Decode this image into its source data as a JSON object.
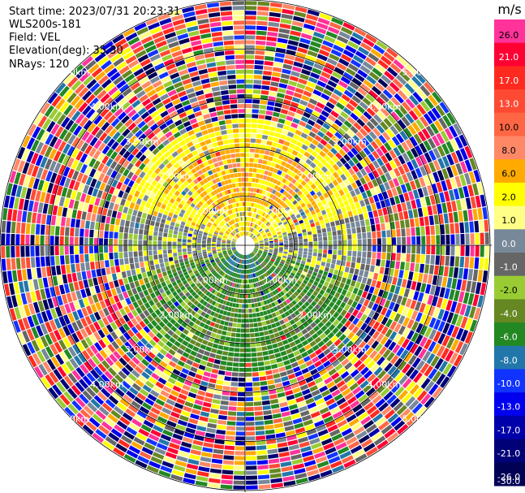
{
  "header": {
    "start_time": "Start time: 2023/07/31 20:23:31",
    "site": "WLS200s-181",
    "field": "Field: VEL",
    "elevation": "Elevation(deg): 35.30",
    "nrays": "NRays: 120"
  },
  "chart_data": {
    "type": "heatmap",
    "projection": "polar-ppi",
    "field": "VEL",
    "n_rays": 120,
    "range_rings_km": [
      1.0,
      2.0,
      3.0,
      4.0,
      5.0
    ],
    "ring_labels": [
      "1.00km",
      "2.00km",
      "3.00km",
      "4.00km",
      "5.00km"
    ],
    "max_range_km": 5.0,
    "colorbar": {
      "unit": "m/s",
      "ticks": [
        "26.0",
        "21.0",
        "17.0",
        "13.0",
        "10.0",
        "8.0",
        "6.0",
        "2.0",
        "1.0",
        "0.0",
        "-1.0",
        "-2.0",
        "-4.0",
        "-6.0",
        "-8.0",
        "-10.0",
        "-13.0",
        "-17.0",
        "-21.0",
        "-26.0",
        "-30.0"
      ],
      "colors": [
        "#ff3399",
        "#ff0033",
        "#ff2a1f",
        "#ff4a33",
        "#ff6644",
        "#ff8866",
        "#ffaa00",
        "#ffff00",
        "#ffff88",
        "#778899",
        "#666666",
        "#99cc33",
        "#668822",
        "#228822",
        "#2277aa",
        "#1133ff",
        "#0000ee",
        "#0000aa",
        "#000077",
        "#000055"
      ]
    }
  }
}
